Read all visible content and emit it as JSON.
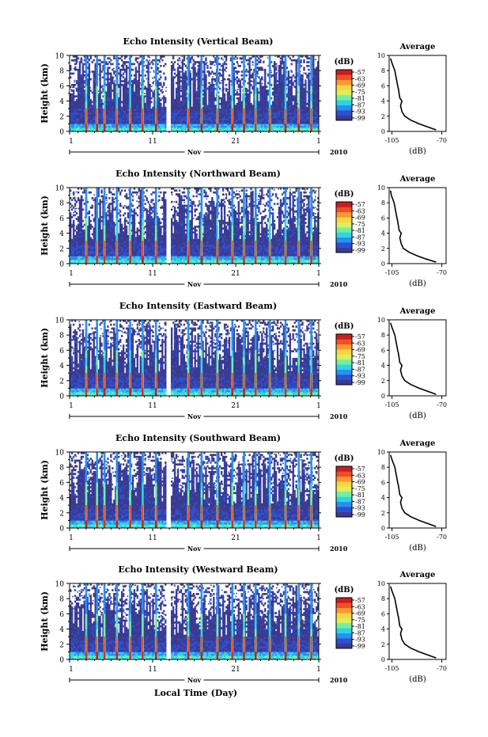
{
  "figure": {
    "xlabel": "Local Time (Day)",
    "month_label": "Nov",
    "year_label": "2010",
    "colorbar_unit": "(dB)",
    "profile_title": "Average",
    "profile_xlabel": "(dB)"
  },
  "colors": {
    "background": "#ffffff",
    "axis": "#000000",
    "colormap": [
      "#3b3b8f",
      "#2f4fd0",
      "#2a8ff0",
      "#2fd3ea",
      "#6ff0a8",
      "#d8f060",
      "#f6d640",
      "#f79a30",
      "#ef4f26",
      "#c81e1e"
    ]
  },
  "chart_data": [
    {
      "type": "heatmap",
      "title": "Echo Intensity (Vertical Beam)",
      "ylabel": "Height (km)",
      "x_ticks": [
        "1",
        "11",
        "21",
        "1"
      ],
      "y_ticks": [
        "0",
        "2",
        "4",
        "6",
        "8",
        "10"
      ],
      "xlim": [
        1,
        31
      ],
      "ylim": [
        0,
        10
      ],
      "colorbar_ticks": [
        "-57",
        "-63",
        "-69",
        "-75",
        "-81",
        "-87",
        "-93",
        "-99"
      ],
      "profile": {
        "x_ticks": [
          "-105",
          "-70"
        ],
        "y_ticks": [
          "0",
          "2",
          "4",
          "6",
          "8",
          "10"
        ],
        "xlim": [
          -107,
          -67
        ],
        "ylim": [
          0,
          10
        ],
        "x": [
          -74,
          -80,
          -86,
          -92,
          -96,
          -98,
          -98.5,
          -99,
          -98,
          -99.5,
          -100,
          -100.5,
          -101,
          -101.5,
          -102,
          -102.5,
          -103,
          -104,
          -105,
          -106
        ],
        "y": [
          0.2,
          0.6,
          1.0,
          1.5,
          2.0,
          2.6,
          3.0,
          3.4,
          4.0,
          4.4,
          5.0,
          5.6,
          6.0,
          6.5,
          7.0,
          7.5,
          8.0,
          8.5,
          9.0,
          9.6
        ]
      }
    },
    {
      "type": "heatmap",
      "title": "Echo Intensity (Northward Beam)",
      "ylabel": "Height (km)",
      "x_ticks": [
        "1",
        "11",
        "21",
        "1"
      ],
      "y_ticks": [
        "0",
        "2",
        "4",
        "6",
        "8",
        "10"
      ],
      "xlim": [
        1,
        31
      ],
      "ylim": [
        0,
        10
      ],
      "colorbar_ticks": [
        "-57",
        "-63",
        "-69",
        "-75",
        "-81",
        "-87",
        "-93",
        "-99"
      ],
      "profile": {
        "x_ticks": [
          "-105",
          "-70"
        ],
        "y_ticks": [
          "0",
          "2",
          "4",
          "6",
          "8",
          "10"
        ],
        "xlim": [
          -107,
          -67
        ],
        "ylim": [
          0,
          10
        ],
        "x": [
          -74,
          -81,
          -87,
          -93,
          -97,
          -98.5,
          -99,
          -99.5,
          -98.5,
          -100,
          -100.5,
          -101,
          -101.5,
          -102,
          -102.5,
          -103,
          -103.5,
          -104.5,
          -105.5,
          -106
        ],
        "y": [
          0.2,
          0.6,
          1.0,
          1.5,
          2.0,
          2.6,
          3.0,
          3.4,
          4.0,
          4.4,
          5.0,
          5.6,
          6.0,
          6.5,
          7.0,
          7.5,
          8.0,
          8.5,
          9.0,
          9.6
        ]
      }
    },
    {
      "type": "heatmap",
      "title": "Echo Intensity (Eastward Beam)",
      "ylabel": "Height (km)",
      "x_ticks": [
        "1",
        "11",
        "21",
        "1"
      ],
      "y_ticks": [
        "0",
        "2",
        "4",
        "6",
        "8",
        "10"
      ],
      "xlim": [
        1,
        31
      ],
      "ylim": [
        0,
        10
      ],
      "colorbar_ticks": [
        "-57",
        "-63",
        "-69",
        "-75",
        "-81",
        "-87",
        "-93",
        "-99"
      ],
      "profile": {
        "x_ticks": [
          "-105",
          "-70"
        ],
        "y_ticks": [
          "0",
          "2",
          "4",
          "6",
          "8",
          "10"
        ],
        "xlim": [
          -107,
          -67
        ],
        "ylim": [
          0,
          10
        ],
        "x": [
          -74,
          -80,
          -86,
          -92,
          -96,
          -98,
          -98.5,
          -99,
          -98,
          -99.5,
          -100,
          -100.5,
          -101,
          -101.5,
          -102,
          -102.5,
          -103,
          -104,
          -105,
          -106
        ],
        "y": [
          0.2,
          0.6,
          1.0,
          1.5,
          2.0,
          2.6,
          3.0,
          3.4,
          4.0,
          4.4,
          5.0,
          5.6,
          6.0,
          6.5,
          7.0,
          7.5,
          8.0,
          8.5,
          9.0,
          9.6
        ]
      }
    },
    {
      "type": "heatmap",
      "title": "Echo Intensity (Southward Beam)",
      "ylabel": "Height (km)",
      "x_ticks": [
        "1",
        "11",
        "21",
        "1"
      ],
      "y_ticks": [
        "0",
        "2",
        "4",
        "6",
        "8",
        "10"
      ],
      "xlim": [
        1,
        31
      ],
      "ylim": [
        0,
        10
      ],
      "colorbar_ticks": [
        "-57",
        "-63",
        "-69",
        "-75",
        "-81",
        "-87",
        "-93",
        "-99"
      ],
      "profile": {
        "x_ticks": [
          "-105",
          "-70"
        ],
        "y_ticks": [
          "0",
          "2",
          "4",
          "6",
          "8",
          "10"
        ],
        "xlim": [
          -107,
          -67
        ],
        "ylim": [
          0,
          10
        ],
        "x": [
          -74,
          -80,
          -86,
          -92,
          -96,
          -98,
          -98.5,
          -99,
          -98,
          -99.5,
          -100,
          -100.5,
          -101,
          -101.5,
          -102,
          -102.5,
          -103,
          -104,
          -105,
          -106
        ],
        "y": [
          0.2,
          0.6,
          1.0,
          1.5,
          2.0,
          2.6,
          3.0,
          3.4,
          4.0,
          4.4,
          5.0,
          5.6,
          6.0,
          6.5,
          7.0,
          7.5,
          8.0,
          8.5,
          9.0,
          9.6
        ]
      }
    },
    {
      "type": "heatmap",
      "title": "Echo Intensity (Westward Beam)",
      "ylabel": "Height (km)",
      "x_ticks": [
        "1",
        "11",
        "21",
        "1"
      ],
      "y_ticks": [
        "0",
        "2",
        "4",
        "6",
        "8",
        "10"
      ],
      "xlim": [
        1,
        31
      ],
      "ylim": [
        0,
        10
      ],
      "colorbar_ticks": [
        "-57",
        "-63",
        "-69",
        "-75",
        "-81",
        "-87",
        "-93",
        "-99"
      ],
      "profile": {
        "x_ticks": [
          "-105",
          "-70"
        ],
        "y_ticks": [
          "0",
          "2",
          "4",
          "6",
          "8",
          "10"
        ],
        "xlim": [
          -107,
          -67
        ],
        "ylim": [
          0,
          10
        ],
        "x": [
          -74,
          -80,
          -86,
          -92,
          -96,
          -98,
          -98.5,
          -99,
          -98,
          -99.5,
          -100,
          -100.5,
          -101,
          -101.5,
          -102,
          -102.5,
          -103,
          -104,
          -105,
          -106
        ],
        "y": [
          0.2,
          0.6,
          1.0,
          1.5,
          2.0,
          2.6,
          3.0,
          3.4,
          4.0,
          4.4,
          5.0,
          5.6,
          6.0,
          6.5,
          7.0,
          7.5,
          8.0,
          8.5,
          9.0,
          9.6
        ]
      }
    }
  ]
}
